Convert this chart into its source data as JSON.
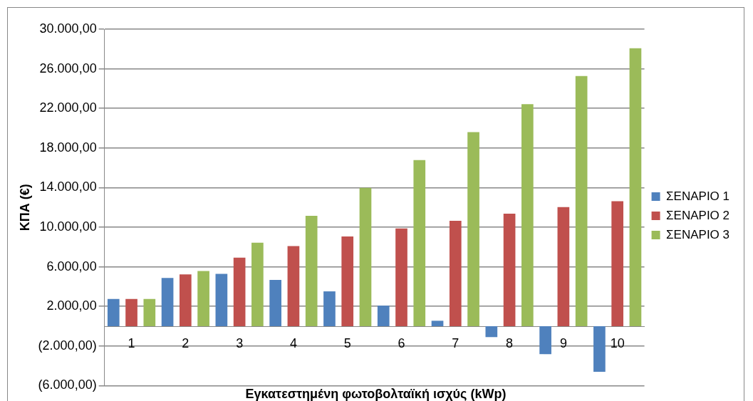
{
  "chart_data": {
    "type": "bar",
    "ylabel": "ΚΠΑ (€)",
    "xlabel": "Εγκατεστημένη φωτοβολταϊκή ισχύς (kWp)",
    "categories": [
      "1",
      "2",
      "3",
      "4",
      "5",
      "6",
      "7",
      "8",
      "9",
      "10"
    ],
    "series": [
      {
        "name": "ΣΕΝΑΡΙΟ 1",
        "color": "#4f81bd",
        "values": [
          2750,
          4870,
          5290,
          4670,
          3520,
          2080,
          550,
          -1100,
          -2820,
          -4610
        ]
      },
      {
        "name": "ΣΕΝΑΡΙΟ 2",
        "color": "#c0504d",
        "values": [
          2750,
          5240,
          6930,
          8100,
          9070,
          9870,
          10640,
          11360,
          12030,
          12630
        ]
      },
      {
        "name": "ΣΕΝΑΡΙΟ 3",
        "color": "#9bbb59",
        "values": [
          2750,
          5570,
          8430,
          11160,
          13970,
          16780,
          19600,
          22430,
          25270,
          28070
        ]
      }
    ],
    "ylim": [
      -6000,
      30000
    ],
    "yticks": [
      {
        "value": -6000,
        "label": "(6.000,00)"
      },
      {
        "value": -2000,
        "label": "(2.000,00)"
      },
      {
        "value": 2000,
        "label": "2.000,00"
      },
      {
        "value": 6000,
        "label": "6.000,00"
      },
      {
        "value": 10000,
        "label": "10.000,00"
      },
      {
        "value": 14000,
        "label": "14.000,00"
      },
      {
        "value": 18000,
        "label": "18.000,00"
      },
      {
        "value": 22000,
        "label": "22.000,00"
      },
      {
        "value": 26000,
        "label": "26.000,00"
      },
      {
        "value": 30000,
        "label": "30.000,00"
      }
    ],
    "grid": "y",
    "legend": "right"
  }
}
